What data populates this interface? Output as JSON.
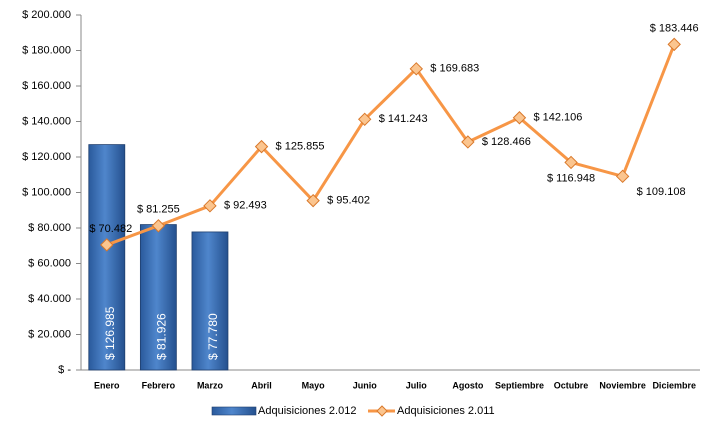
{
  "chart_data": {
    "type": "combo",
    "categories": [
      "Enero",
      "Febrero",
      "Marzo",
      "Abril",
      "Mayo",
      "Junio",
      "Julio",
      "Agosto",
      "Septiembre",
      "Octubre",
      "Noviembre",
      "Diciembre"
    ],
    "series": [
      {
        "name": "Adquisiciones 2.012",
        "type": "bar",
        "color": "#3a70b8",
        "values": [
          126985,
          81926,
          77780,
          null,
          null,
          null,
          null,
          null,
          null,
          null,
          null,
          null
        ],
        "value_labels": [
          "$ 126.985",
          "$ 81.926",
          "$ 77.780",
          null,
          null,
          null,
          null,
          null,
          null,
          null,
          null,
          null
        ]
      },
      {
        "name": "Adquisiciones 2.011",
        "type": "line",
        "color": "#f79646",
        "values": [
          70482,
          81255,
          92493,
          125855,
          95402,
          141243,
          169683,
          128466,
          142106,
          116948,
          109108,
          183446
        ],
        "value_labels": [
          "$ 70.482",
          "$ 81.255",
          "$ 92.493",
          "$ 125.855",
          "$ 95.402",
          "$ 141.243",
          "$ 169.683",
          "$ 128.466",
          "$ 142.106",
          "$ 116.948",
          "$ 109.108",
          "$ 183.446"
        ]
      }
    ],
    "ylim": [
      0,
      200000
    ],
    "yticks": [
      {
        "value": 0,
        "label": "$ -"
      },
      {
        "value": 20000,
        "label": "$ 20.000"
      },
      {
        "value": 40000,
        "label": "$ 40.000"
      },
      {
        "value": 60000,
        "label": "$ 60.000"
      },
      {
        "value": 80000,
        "label": "$ 80.000"
      },
      {
        "value": 100000,
        "label": "$ 100.000"
      },
      {
        "value": 120000,
        "label": "$ 120.000"
      },
      {
        "value": 140000,
        "label": "$ 140.000"
      },
      {
        "value": 160000,
        "label": "$ 160.000"
      },
      {
        "value": 180000,
        "label": "$ 180.000"
      },
      {
        "value": 200000,
        "label": "$ 200.000"
      }
    ],
    "legend": "bottom"
  }
}
